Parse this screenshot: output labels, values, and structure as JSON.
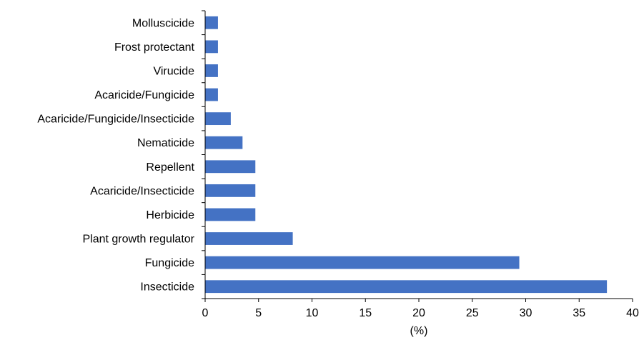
{
  "chart_data": {
    "type": "bar",
    "orientation": "horizontal",
    "categories": [
      "Molluscicide",
      "Frost protectant",
      "Virucide",
      "Acaricide/Fungicide",
      "Acaricide/Fungicide/Insecticide",
      "Nematicide",
      "Repellent",
      "Acaricide/Insecticide",
      "Herbicide",
      "Plant growth regulator",
      "Fungicide",
      "Insecticide"
    ],
    "values": [
      1.2,
      1.2,
      1.2,
      1.2,
      2.4,
      3.5,
      4.7,
      4.7,
      4.7,
      8.2,
      29.4,
      37.6
    ],
    "xlabel": "(%)",
    "xlim": [
      0,
      40
    ],
    "xticks": [
      "0",
      "5",
      "10",
      "15",
      "20",
      "25",
      "30",
      "35",
      "40"
    ],
    "bar_color": "#4472c4",
    "grid": false
  }
}
